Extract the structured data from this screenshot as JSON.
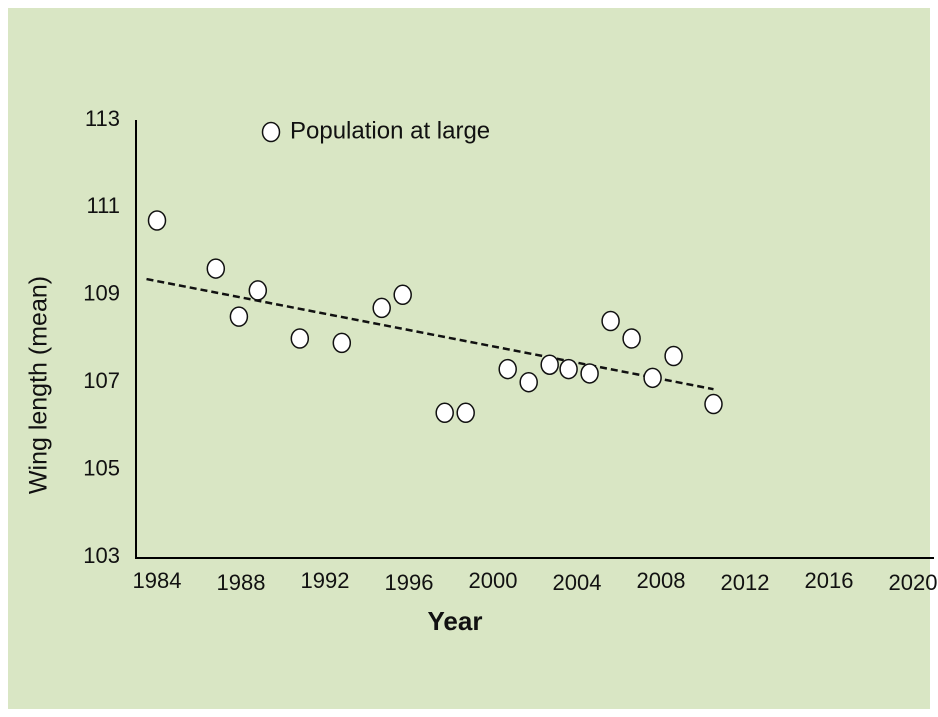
{
  "chart_data": {
    "type": "scatter",
    "x_label": "Year",
    "y_label": "Wing length (mean)",
    "xlim": [
      1983,
      2021
    ],
    "xticks": [
      1984,
      1988,
      1992,
      1996,
      2000,
      2004,
      2008,
      2012,
      2016,
      2020
    ],
    "ylim": [
      103,
      113
    ],
    "yticks": [
      103,
      105,
      107,
      109,
      111,
      113
    ],
    "grid": false,
    "legend_position": "top-left",
    "series": [
      {
        "name": "Population at large",
        "color": "#ffffff",
        "x": [
          1984,
          1986.8,
          1987.9,
          1988.8,
          1990.8,
          1992.8,
          1994.7,
          1995.7,
          1997.7,
          1998.7,
          2000.7,
          2001.7,
          2002.7,
          2003.6,
          2004.6,
          2005.6,
          2006.6,
          2007.6,
          2008.6,
          2010.5
        ],
        "values": [
          110.7,
          109.6,
          108.5,
          109.1,
          108.0,
          107.9,
          108.7,
          109.0,
          106.3,
          106.3,
          107.3,
          107.0,
          107.4,
          107.3,
          107.2,
          108.4,
          108.0,
          107.1,
          107.6,
          106.5
        ]
      }
    ],
    "trendline": {
      "x": [
        1983.5,
        2010.5
      ],
      "values": [
        109.36,
        106.84
      ]
    }
  }
}
